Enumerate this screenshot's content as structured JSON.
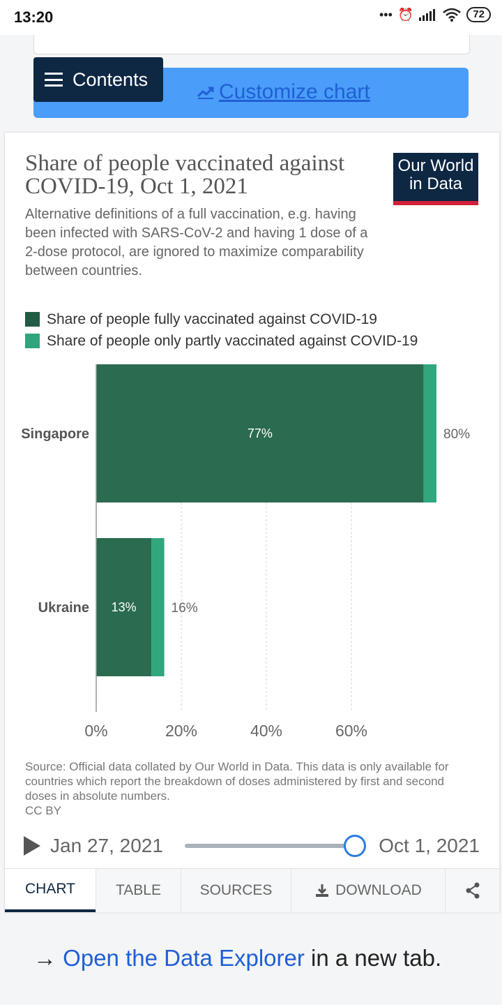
{
  "status_bar": {
    "time": "13:20",
    "battery": "72"
  },
  "header": {
    "contents_label": "Contents",
    "customize_label": "Customize chart"
  },
  "chart_card": {
    "title": "Share of people vaccinated against COVID-19, Oct 1, 2021",
    "subtitle": "Alternative definitions of a full vaccination, e.g. having been infected with SARS-CoV-2 and having 1 dose of a 2-dose protocol, are ignored to maximize comparability between countries.",
    "logo_line1": "Our World",
    "logo_line2": "in Data",
    "source": "Source: Official data collated by Our World in Data. This data is only available for countries which report the breakdown of doses administered by first and second doses in absolute numbers.",
    "license": "CC BY",
    "colors": {
      "full": "#2b6b4f",
      "partly": "#31a77e",
      "logo_bg": "#0e2743",
      "logo_accent": "#d2203a"
    }
  },
  "chart_data": {
    "type": "bar",
    "orientation": "horizontal",
    "stacked": true,
    "categories": [
      "Singapore",
      "Ukraine"
    ],
    "series": [
      {
        "name": "Share of people fully vaccinated against COVID-19",
        "values": [
          77,
          13
        ],
        "labels": [
          "77%",
          "13%"
        ],
        "color": "#2b6b4f"
      },
      {
        "name": "Share of people only partly vaccinated against COVID-19",
        "values": [
          3,
          3
        ],
        "color": "#31a77e"
      }
    ],
    "totals": [
      80,
      16
    ],
    "total_labels": [
      "80%",
      "16%"
    ],
    "x_ticks": [
      0,
      20,
      40,
      60
    ],
    "x_tick_labels": [
      "0%",
      "20%",
      "40%",
      "60%"
    ],
    "xlim": [
      0,
      80
    ],
    "grid": true,
    "legend_position": "top"
  },
  "timeline": {
    "start": "Jan 27, 2021",
    "end": "Oct 1, 2021",
    "position": 1.0
  },
  "tabs": [
    {
      "label": "CHART",
      "active": true
    },
    {
      "label": "TABLE",
      "active": false
    },
    {
      "label": "SOURCES",
      "active": false
    },
    {
      "label": "DOWNLOAD",
      "active": false
    },
    {
      "label": "",
      "active": false,
      "icon": "share-icon"
    }
  ],
  "explorer": {
    "arrow": "→",
    "link_text": "Open the Data Explorer",
    "rest": " in a new tab."
  }
}
